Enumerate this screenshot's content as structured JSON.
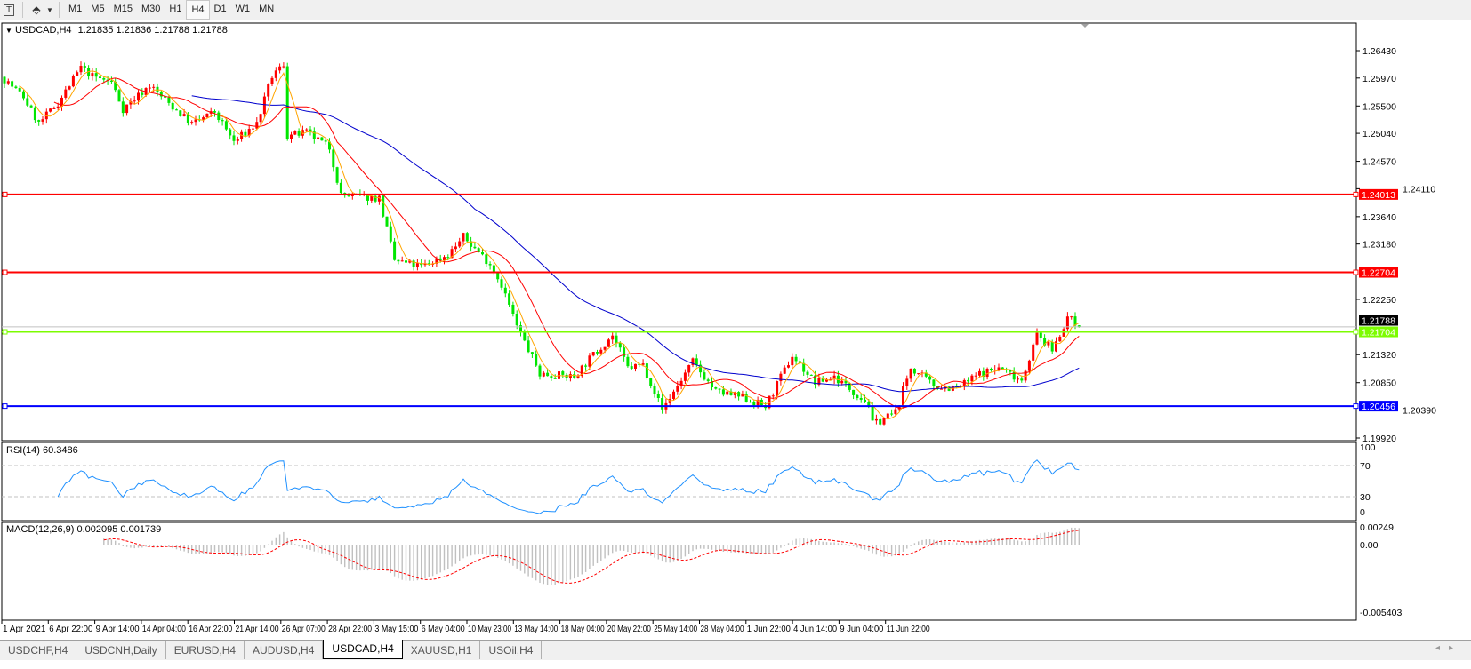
{
  "toolbar": {
    "text_tool_icon": "text-T-icon",
    "line_tool_icon": "line-style-icon",
    "timeframes": [
      "M1",
      "M5",
      "M15",
      "M30",
      "H1",
      "H4",
      "D1",
      "W1",
      "MN"
    ],
    "active_timeframe": "H4"
  },
  "header": {
    "symbol": "USDCAD,H4",
    "ohlc": "1.21835 1.21836 1.21788 1.21788"
  },
  "price_axis": {
    "ticks": [
      "1.26430",
      "1.25970",
      "1.25500",
      "1.25040",
      "1.24570",
      "1.24110",
      "1.23640",
      "1.23180",
      "1.22250",
      "1.21320",
      "1.20850",
      "1.20390",
      "1.19920"
    ],
    "current_price": "1.21788"
  },
  "levels": [
    {
      "price": 1.24013,
      "label": "1.24013",
      "color": "#ff0000"
    },
    {
      "price": 1.22704,
      "label": "1.22704",
      "color": "#ff0000"
    },
    {
      "price": 1.21704,
      "label": "1.21704",
      "color": "#7cfc00"
    },
    {
      "price": 1.20456,
      "label": "1.20456",
      "color": "#0000ff"
    }
  ],
  "colors": {
    "bull_candle": "#ff0000",
    "bear_candle": "#00e600",
    "ma_fast": "#ffa500",
    "ma_mid": "#ff0000",
    "ma_slow": "#0000cd",
    "rsi_line": "#1e90ff",
    "macd_hist": "#c0c0c0",
    "macd_signal": "#ff0000"
  },
  "chart": {
    "price_path": [
      [
        0,
        1.2595
      ],
      [
        5,
        1.2565
      ],
      [
        9,
        1.252
      ],
      [
        14,
        1.2555
      ],
      [
        20,
        1.2615
      ],
      [
        23,
        1.26
      ],
      [
        28,
        1.259
      ],
      [
        31,
        1.2545
      ],
      [
        38,
        1.2585
      ],
      [
        42,
        1.256
      ],
      [
        49,
        1.252
      ],
      [
        55,
        1.254
      ],
      [
        60,
        1.249
      ],
      [
        66,
        1.252
      ],
      [
        70,
        1.26
      ],
      [
        73,
        1.262
      ],
      [
        74,
        1.25
      ],
      [
        79,
        1.2505
      ],
      [
        85,
        1.248
      ],
      [
        88,
        1.24
      ],
      [
        98,
        1.2395
      ],
      [
        102,
        1.229
      ],
      [
        109,
        1.228
      ],
      [
        116,
        1.23
      ],
      [
        120,
        1.233
      ],
      [
        127,
        1.2285
      ],
      [
        130,
        1.225
      ],
      [
        134,
        1.218
      ],
      [
        140,
        1.21
      ],
      [
        149,
        1.2095
      ],
      [
        153,
        1.2125
      ],
      [
        159,
        1.2165
      ],
      [
        163,
        1.211
      ],
      [
        167,
        1.2115
      ],
      [
        172,
        1.204
      ],
      [
        180,
        1.212
      ],
      [
        186,
        1.207
      ],
      [
        193,
        1.206
      ],
      [
        199,
        1.2045
      ],
      [
        206,
        1.213
      ],
      [
        212,
        1.2085
      ],
      [
        217,
        1.2095
      ],
      [
        226,
        1.205
      ],
      [
        227,
        1.2015
      ],
      [
        233,
        1.2035
      ],
      [
        237,
        1.211
      ],
      [
        243,
        1.208
      ],
      [
        249,
        1.2075
      ],
      [
        255,
        1.21
      ],
      [
        260,
        1.211
      ],
      [
        266,
        1.209
      ],
      [
        270,
        1.2165
      ],
      [
        274,
        1.214
      ],
      [
        278,
        1.2195
      ],
      [
        281,
        1.21788
      ]
    ],
    "ma_periods": {
      "fast": 5,
      "mid": 14,
      "slow": 50
    }
  },
  "rsi": {
    "label": "RSI(14) 60.3486",
    "levels": [
      "100",
      "70",
      "30",
      "0"
    ]
  },
  "macd": {
    "label": "MACD(12,26,9) 0.002095 0.001739",
    "ticks": [
      "0.00249",
      "0.00",
      "-0.005403"
    ]
  },
  "time_axis": [
    "1 Apr 2021",
    "6 Apr 22:00",
    "9 Apr 14:00",
    "14 Apr 04:00",
    "16 Apr 22:00",
    "21 Apr 14:00",
    "26 Apr 07:00",
    "28 Apr 22:00",
    "3 May 15:00",
    "6 May 04:00",
    "10 May 23:00",
    "13 May 14:00",
    "18 May 04:00",
    "20 May 22:00",
    "25 May 14:00",
    "28 May 04:00",
    "1 Jun 22:00",
    "4 Jun 14:00",
    "9 Jun 04:00",
    "11 Jun 22:00"
  ],
  "tabs": [
    {
      "label": "USDCHF,H4",
      "active": false
    },
    {
      "label": "USDCNH,Daily",
      "active": false
    },
    {
      "label": "EURUSD,H4",
      "active": false
    },
    {
      "label": "AUDUSD,H4",
      "active": false
    },
    {
      "label": "USDCAD,H4",
      "active": true
    },
    {
      "label": "XAUUSD,H1",
      "active": false
    },
    {
      "label": "USOil,H4",
      "active": false
    }
  ]
}
